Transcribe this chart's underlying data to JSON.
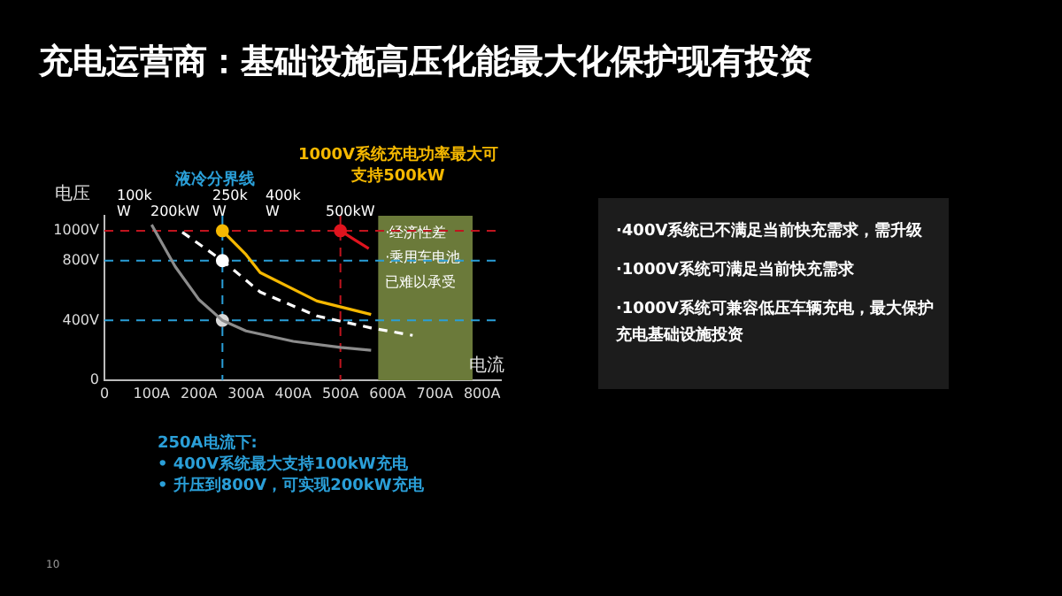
{
  "chart_data": [
    {
      "type": "line",
      "title": "充电运营商：基础设施高压化能最大化保护现有投资",
      "xlabel": "电流",
      "ylabel": "电压",
      "xlim": [
        0,
        840
      ],
      "xticks": [
        0,
        {
          "value": 100,
          "label": "100A"
        },
        {
          "value": 200,
          "label": "200A"
        },
        {
          "value": 300,
          "label": "300A"
        },
        {
          "value": 400,
          "label": "400A"
        },
        {
          "value": 500,
          "label": "500A"
        },
        {
          "value": 600,
          "label": "600A"
        },
        {
          "value": 700,
          "label": "700A"
        },
        {
          "value": 800,
          "label": "800A"
        }
      ],
      "ylim": [
        0,
        1100
      ],
      "yticks": [
        0,
        {
          "value": 400,
          "label": "400V"
        },
        {
          "value": 800,
          "label": "800V"
        },
        {
          "value": 1000,
          "label": "1000V"
        }
      ],
      "grid": false,
      "legend": false,
      "marker": "none",
      "series": [
        {
          "color": "#8c8c8c",
          "x": [
            100,
            150,
            200,
            250,
            300,
            400,
            500,
            565
          ],
          "values": [
            1040,
            760,
            540,
            400,
            330,
            260,
            220,
            200
          ]
        },
        {
          "color": "#ffffff",
          "line_style": "dashed",
          "x": [
            165,
            250,
            330,
            450,
            565,
            653
          ],
          "values": [
            990,
            800,
            590,
            430,
            350,
            300
          ]
        },
        {
          "color": "#f5b800",
          "x": [
            250,
            300,
            330,
            450,
            565
          ],
          "values": [
            1000,
            840,
            720,
            530,
            440
          ]
        },
        {
          "color": "#e0141e",
          "x": [
            500,
            530,
            560
          ],
          "values": [
            1000,
            940,
            880
          ]
        },
        {
          "type": "scatter",
          "marker": "circle",
          "x": [
            250,
            250,
            250,
            500
          ],
          "values": [
            1000,
            800,
            400,
            1000
          ],
          "colors": [
            "#f5b800",
            "#ffffff",
            "#d9d9d9",
            "#e0141e"
          ]
        }
      ],
      "ref_lines": [
        {
          "axis": "y",
          "value": 1000,
          "color": "#c0141e",
          "line_style": "dashed"
        },
        {
          "axis": "y",
          "value": 800,
          "color": "#2a9fd8",
          "line_style": "dashed"
        },
        {
          "axis": "y",
          "value": 400,
          "color": "#2a9fd8",
          "line_style": "dashed"
        },
        {
          "axis": "x",
          "value": 250,
          "label": "液冷分界线",
          "color": "#2a9fd8",
          "line_style": "dashed"
        },
        {
          "axis": "x",
          "value": 500,
          "color": "#c0141e",
          "line_style": "dashed"
        }
      ],
      "bands": [
        {
          "axis": "x",
          "from": 580,
          "to": 780,
          "label": "·经济性差\n·乘用车电池已难以承受",
          "color": "#6b7a3a"
        }
      ],
      "annotations": [
        "100kW",
        "200kW",
        "250kW",
        "400kW",
        "500kW",
        "1000V系统充电功率最大可支持500kW",
        "250A电流下:",
        "• 400V系统最大支持100kW充电",
        "• 升压到800V，可实现200kW充电",
        "10"
      ]
    },
    {
      "type": "other",
      "annotations": [
        "·400V系统已不满足当前快充需求，需升级",
        "·1000V系统可满足当前快充需求",
        "·1000V系统可兼容低压车辆充电，最大保护充电基础设施投资"
      ]
    }
  ]
}
